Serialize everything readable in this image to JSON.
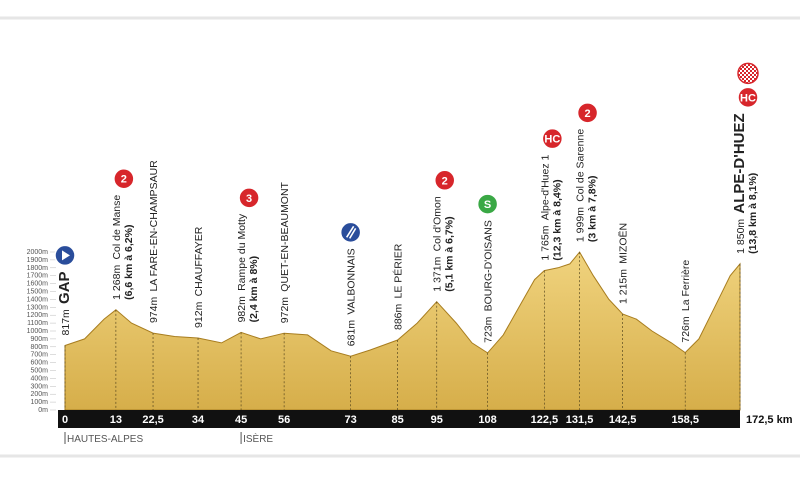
{
  "chart_data": {
    "type": "area",
    "x": [
      0,
      5,
      10,
      13,
      17,
      22.5,
      28,
      34,
      40,
      45,
      50,
      56,
      62,
      68,
      73,
      78,
      85,
      90,
      95,
      100,
      104,
      108,
      112,
      116,
      120,
      122.5,
      126,
      129,
      131.5,
      135,
      139,
      142.5,
      146,
      150,
      155,
      158.5,
      162,
      166,
      170,
      172.5
    ],
    "values": [
      817,
      900,
      1150,
      1268,
      1100,
      974,
      930,
      912,
      850,
      982,
      900,
      972,
      950,
      750,
      681,
      760,
      886,
      1100,
      1371,
      1100,
      850,
      723,
      950,
      1300,
      1650,
      1765,
      1800,
      1850,
      1999,
      1700,
      1400,
      1215,
      1150,
      1000,
      850,
      726,
      900,
      1300,
      1700,
      1850
    ],
    "color": "#e2bb5a",
    "xlim": [
      0,
      172.5
    ],
    "ylim": [
      0,
      2000
    ],
    "xticks": [
      0,
      13,
      {
        "value": 22.5,
        "label": "22,5"
      },
      34,
      45,
      56,
      73,
      85,
      95,
      108,
      {
        "value": 122.5,
        "label": "122,5"
      },
      {
        "value": 131.5,
        "label": "131,5"
      },
      {
        "value": 142.5,
        "label": "142,5"
      },
      {
        "value": 158.5,
        "label": "158,5"
      },
      {
        "value": 172.5,
        "label": "172,5 km"
      }
    ],
    "yticks": [
      {
        "value": 0,
        "label": "0m"
      },
      {
        "value": 100,
        "label": "100m"
      },
      {
        "value": 200,
        "label": "200m"
      },
      {
        "value": 300,
        "label": "300m"
      },
      {
        "value": 400,
        "label": "400m"
      },
      {
        "value": 500,
        "label": "500m"
      },
      {
        "value": 600,
        "label": "600m"
      },
      {
        "value": 700,
        "label": "700m"
      },
      {
        "value": 800,
        "label": "800m"
      },
      {
        "value": 900,
        "label": "900m"
      },
      {
        "value": 1000,
        "label": "1000m"
      },
      {
        "value": 1100,
        "label": "1100m"
      },
      {
        "value": 1200,
        "label": "1200m"
      },
      {
        "value": 1300,
        "label": "1300m"
      },
      {
        "value": 1400,
        "label": "1400m"
      },
      {
        "value": 1500,
        "label": "1500m"
      },
      {
        "value": 1600,
        "label": "1600m"
      },
      {
        "value": 1700,
        "label": "1700m"
      },
      {
        "value": 1800,
        "label": "1800m"
      },
      {
        "value": 1900,
        "label": "1900m"
      },
      {
        "value": 2000,
        "label": "2000m"
      }
    ],
    "annotations": [
      {
        "x": 0,
        "elevation": "817m",
        "name": "GAP",
        "emphasis": true,
        "badges": [
          {
            "color": "#2a4d9b",
            "pattern": "arrow"
          }
        ]
      },
      {
        "x": 13,
        "elevation": "1 268m",
        "name": "Col de Manse",
        "detail": "(6,6 km à 6,2%)",
        "badges": [
          {
            "text": "2",
            "color": "#d7262b"
          }
        ]
      },
      {
        "x": 22.5,
        "elevation": "974m",
        "name": "LA FARE-EN-CHAMPSAUR"
      },
      {
        "x": 34,
        "elevation": "912m",
        "name": "CHAUFFAYER"
      },
      {
        "x": 45,
        "elevation": "982m",
        "name": "Rampe du Motty",
        "detail": "(2,4 km à 8%)",
        "badges": [
          {
            "text": "3",
            "color": "#d7262b"
          }
        ]
      },
      {
        "x": 56,
        "elevation": "972m",
        "name": "QUET-EN-BEAUMONT"
      },
      {
        "x": 73,
        "elevation": "681m",
        "name": "VALBONNAIS",
        "badges": [
          {
            "color": "#2a4d9b",
            "pattern": "stripes"
          }
        ]
      },
      {
        "x": 85,
        "elevation": "886m",
        "name": "LE PÉRIER"
      },
      {
        "x": 95,
        "elevation": "1 371m",
        "name": "Col d'Omon",
        "detail": "(5,1 km à 6,7%)",
        "badges": [
          {
            "text": "2",
            "color": "#d7262b"
          }
        ]
      },
      {
        "x": 108,
        "elevation": "723m",
        "name": "BOURG-D'OISANS",
        "badges": [
          {
            "text": "S",
            "color": "#3aa845"
          }
        ]
      },
      {
        "x": 122.5,
        "elevation": "1 765m",
        "name": "Alpe-d'Huez 1",
        "detail": "(12,3 km à 8,4%)",
        "badges": [
          {
            "text": "HC",
            "color": "#d7262b"
          }
        ]
      },
      {
        "x": 131.5,
        "elevation": "1 999m",
        "name": "Col de Sarenne",
        "detail": "(3 km à 7,8%)",
        "badges": [
          {
            "text": "2",
            "color": "#d7262b"
          }
        ]
      },
      {
        "x": 142.5,
        "elevation": "1 215m",
        "name": "MIZOËN"
      },
      {
        "x": 158.5,
        "elevation": "726m",
        "name": "La Ferrière"
      },
      {
        "x": 172.5,
        "elevation": "1 850m",
        "name": "ALPE-D'HUEZ",
        "emphasis": true,
        "detail": "(13,8 km à 8,1%)",
        "badges": [
          {
            "text": "HC",
            "color": "#d7262b"
          },
          {
            "color": "#d7262b",
            "pattern": "checker"
          }
        ]
      }
    ],
    "regions": [
      {
        "x": 0,
        "label": "HAUTES-ALPES"
      },
      {
        "x": 45,
        "label": "ISÈRE"
      }
    ]
  }
}
